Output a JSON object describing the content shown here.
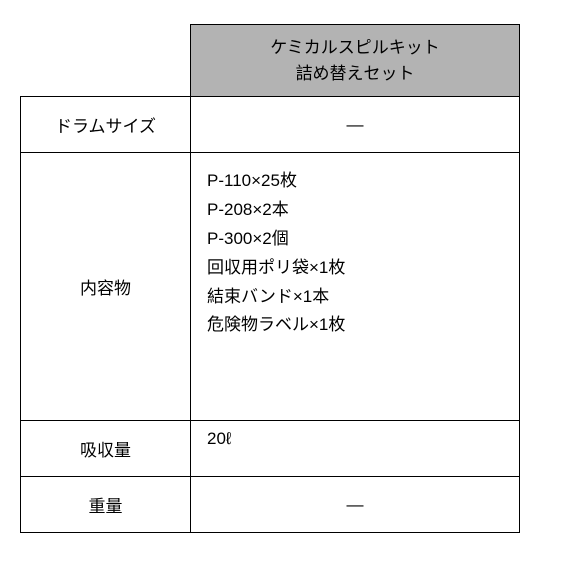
{
  "table": {
    "header": {
      "line1": "ケミカルスピルキット",
      "line2": "詰め替えセット"
    },
    "rows": {
      "drum": {
        "label": "ドラムサイズ",
        "value": "—"
      },
      "contents": {
        "label": "内容物",
        "items": [
          "P-110×25枚",
          "P-208×2本",
          "P-300×2個",
          "回収用ポリ袋×1枚",
          "結束バンド×1本",
          "危険物ラベル×1枚"
        ]
      },
      "absorption": {
        "label": "吸収量",
        "value": "20ℓ"
      },
      "weight": {
        "label": "重量",
        "value": "—"
      }
    },
    "colors": {
      "header_bg": "#b3b3b3",
      "border": "#000000",
      "background": "#ffffff",
      "text": "#000000"
    },
    "font_size": 17
  }
}
